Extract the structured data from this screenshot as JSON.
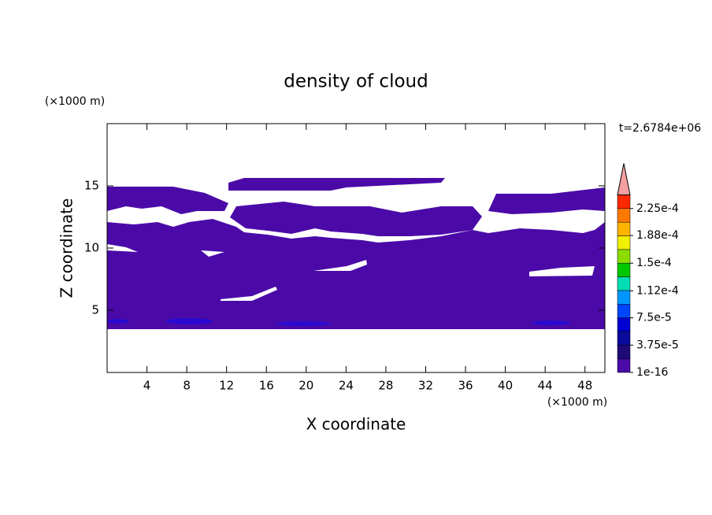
{
  "chart_data": {
    "type": "contour",
    "title": "density of cloud",
    "x_label": "X coordinate",
    "y_label": "Z coordinate",
    "x_unit": "(×1000 m)",
    "y_unit": "(×1000 m)",
    "time_label": "t=2.6784e+06",
    "xlim": [
      0,
      50
    ],
    "xticks": [
      4,
      8,
      12,
      16,
      20,
      24,
      28,
      32,
      36,
      40,
      44,
      48
    ],
    "ylim": [
      0,
      20
    ],
    "yticks": [
      5,
      10,
      15
    ],
    "color": "#4b0aa8",
    "colorbar": {
      "lim": [
        1e-16,
        0.00024375
      ],
      "colors": [
        "#4b0aa8",
        "#1e0a78",
        "#0a0a9c",
        "#0000d2",
        "#0046ff",
        "#0096ff",
        "#00dcb4",
        "#00c800",
        "#8cdc00",
        "#f0f000",
        "#ffb400",
        "#ff7800",
        "#ff2800"
      ],
      "extend_color": "#f4a0a0",
      "ticks": [
        {
          "value": 1e-16,
          "label": "1e-16"
        },
        {
          "value": 3.75e-05,
          "label": "3.75e-5"
        },
        {
          "value": 7.5e-05,
          "label": "7.5e-5"
        },
        {
          "value": 0.000112,
          "label": "1.12e-4"
        },
        {
          "value": 0.00015,
          "label": "1.5e-4"
        },
        {
          "value": 0.000188,
          "label": "1.88e-4"
        },
        {
          "value": 0.000225,
          "label": "2.25e-4"
        }
      ]
    }
  }
}
